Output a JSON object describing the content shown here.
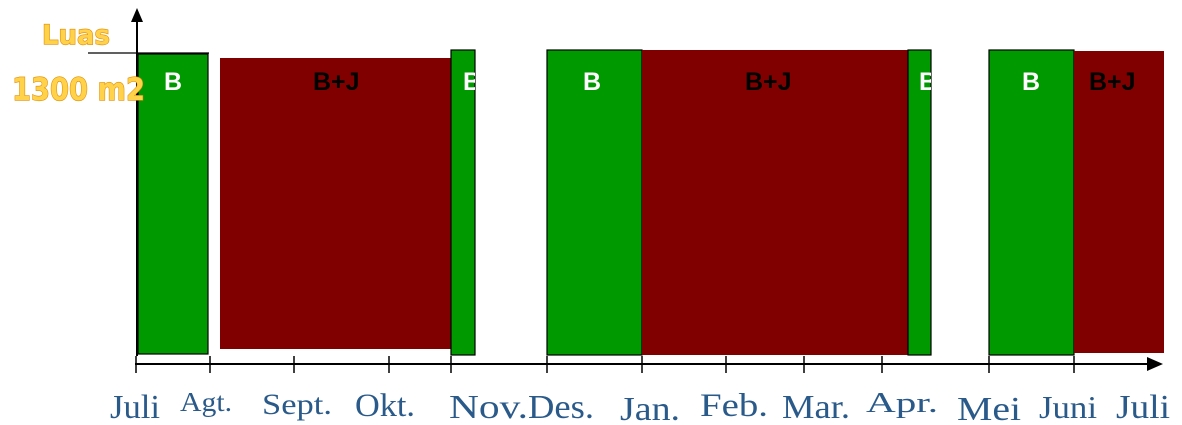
{
  "diagram": {
    "y_axis_label": "Luas",
    "y_value_label": "1300 m2",
    "months": [
      "Juli",
      "Agt.",
      "Sept.",
      "Okt.",
      "Nov.",
      "Des.",
      "Jan.",
      "Feb.",
      "Mar.",
      "Apr.",
      "Mei",
      "Juni",
      "Juli"
    ],
    "blocks": [
      {
        "label": "B",
        "kind": "B",
        "color": "#009900"
      },
      {
        "label": "B+J",
        "kind": "BJ",
        "color": "#800000"
      },
      {
        "label": "B",
        "kind": "B",
        "color": "#009900"
      },
      {
        "label": "B",
        "kind": "B",
        "color": "#009900"
      },
      {
        "label": "B+J",
        "kind": "BJ",
        "color": "#800000"
      },
      {
        "label": "B",
        "kind": "B",
        "color": "#009900"
      },
      {
        "label": "B",
        "kind": "B",
        "color": "#009900"
      },
      {
        "label": "B+J",
        "kind": "BJ",
        "color": "#800000"
      }
    ],
    "colors": {
      "b_fill": "#009900",
      "bj_fill": "#800000",
      "b_label": "#ffffff",
      "bj_label": "#000000",
      "axis": "#000000",
      "month_text": "#2a5a8a"
    }
  }
}
